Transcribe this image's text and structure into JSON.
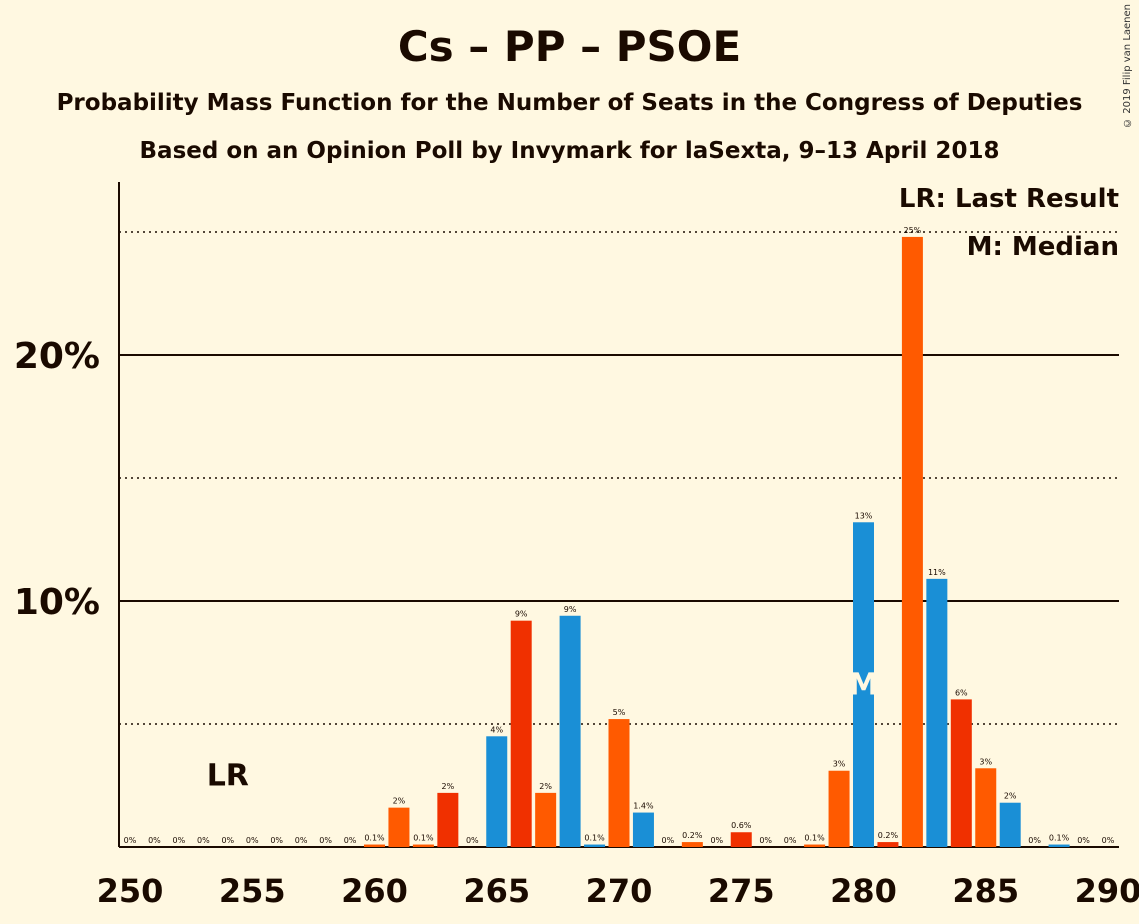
{
  "title": "Cs – PP – PSOE",
  "subtitle1": "Probability Mass Function for the Number of Seats in the Congress of Deputies",
  "subtitle2": "Based on an Opinion Poll by Invymark for laSexta, 9–13 April 2018",
  "copyright": "© 2019 Filip van Laenen",
  "legend": {
    "lr": "LR: Last Result",
    "median": "M: Median"
  },
  "markers": {
    "lr_label": "LR",
    "lr_seat": 254,
    "median_label": "M",
    "median_seat": 280
  },
  "colors": {
    "blue": "#1a8fd6",
    "red": "#f03000",
    "orange": "#ff5a00",
    "background": "#fff8e1"
  },
  "chart_data": {
    "type": "bar",
    "x_range": [
      250,
      290
    ],
    "y_range": [
      0,
      27
    ],
    "x_ticks": [
      250,
      255,
      260,
      265,
      270,
      275,
      280,
      285,
      290
    ],
    "y_ticks": [
      {
        "value": 10,
        "label": "10%"
      },
      {
        "value": 20,
        "label": "20%"
      }
    ],
    "dotted_gridlines": [
      5,
      15,
      25
    ],
    "bars": [
      {
        "seat": 250,
        "value": 0,
        "label": "0%",
        "color": "orange"
      },
      {
        "seat": 251,
        "value": 0,
        "label": "0%",
        "color": "orange"
      },
      {
        "seat": 252,
        "value": 0,
        "label": "0%",
        "color": "orange"
      },
      {
        "seat": 253,
        "value": 0,
        "label": "0%",
        "color": "orange"
      },
      {
        "seat": 254,
        "value": 0,
        "label": "0%",
        "color": "orange"
      },
      {
        "seat": 255,
        "value": 0,
        "label": "0%",
        "color": "orange"
      },
      {
        "seat": 256,
        "value": 0,
        "label": "0%",
        "color": "orange"
      },
      {
        "seat": 257,
        "value": 0,
        "label": "0%",
        "color": "orange"
      },
      {
        "seat": 258,
        "value": 0,
        "label": "0%",
        "color": "orange"
      },
      {
        "seat": 259,
        "value": 0,
        "label": "0%",
        "color": "orange"
      },
      {
        "seat": 260,
        "value": 0.1,
        "label": "0.1%",
        "color": "orange"
      },
      {
        "seat": 261,
        "value": 1.6,
        "label": "2%",
        "color": "orange"
      },
      {
        "seat": 262,
        "value": 0.1,
        "label": "0.1%",
        "color": "orange"
      },
      {
        "seat": 263,
        "value": 2.2,
        "label": "2%",
        "color": "red"
      },
      {
        "seat": 264,
        "value": 0,
        "label": "0%",
        "color": "blue"
      },
      {
        "seat": 265,
        "value": 4.5,
        "label": "4%",
        "color": "blue"
      },
      {
        "seat": 266,
        "value": 9.2,
        "label": "9%",
        "color": "red"
      },
      {
        "seat": 267,
        "value": 2.2,
        "label": "2%",
        "color": "orange"
      },
      {
        "seat": 268,
        "value": 9.4,
        "label": "9%",
        "color": "blue"
      },
      {
        "seat": 269,
        "value": 0.1,
        "label": "0.1%",
        "color": "blue"
      },
      {
        "seat": 270,
        "value": 5.2,
        "label": "5%",
        "color": "orange"
      },
      {
        "seat": 271,
        "value": 1.4,
        "label": "1.4%",
        "color": "blue"
      },
      {
        "seat": 272,
        "value": 0,
        "label": "0%",
        "color": "orange"
      },
      {
        "seat": 273,
        "value": 0.2,
        "label": "0.2%",
        "color": "orange"
      },
      {
        "seat": 274,
        "value": 0,
        "label": "0%",
        "color": "orange"
      },
      {
        "seat": 275,
        "value": 0.6,
        "label": "0.6%",
        "color": "red"
      },
      {
        "seat": 276,
        "value": 0,
        "label": "0%",
        "color": "orange"
      },
      {
        "seat": 277,
        "value": 0,
        "label": "0%",
        "color": "orange"
      },
      {
        "seat": 278,
        "value": 0.1,
        "label": "0.1%",
        "color": "orange"
      },
      {
        "seat": 279,
        "value": 3.1,
        "label": "3%",
        "color": "orange"
      },
      {
        "seat": 280,
        "value": 13.2,
        "label": "13%",
        "color": "blue"
      },
      {
        "seat": 281,
        "value": 0.2,
        "label": "0.2%",
        "color": "red"
      },
      {
        "seat": 282,
        "value": 24.8,
        "label": "25%",
        "color": "orange"
      },
      {
        "seat": 283,
        "value": 10.9,
        "label": "11%",
        "color": "blue"
      },
      {
        "seat": 284,
        "value": 6.0,
        "label": "6%",
        "color": "red"
      },
      {
        "seat": 285,
        "value": 3.2,
        "label": "3%",
        "color": "orange"
      },
      {
        "seat": 286,
        "value": 1.8,
        "label": "2%",
        "color": "blue"
      },
      {
        "seat": 287,
        "value": 0,
        "label": "0%",
        "color": "blue"
      },
      {
        "seat": 288,
        "value": 0.1,
        "label": "0.1%",
        "color": "blue"
      },
      {
        "seat": 289,
        "value": 0,
        "label": "0%",
        "color": "blue"
      },
      {
        "seat": 290,
        "value": 0,
        "label": "0%",
        "color": "blue"
      }
    ]
  }
}
